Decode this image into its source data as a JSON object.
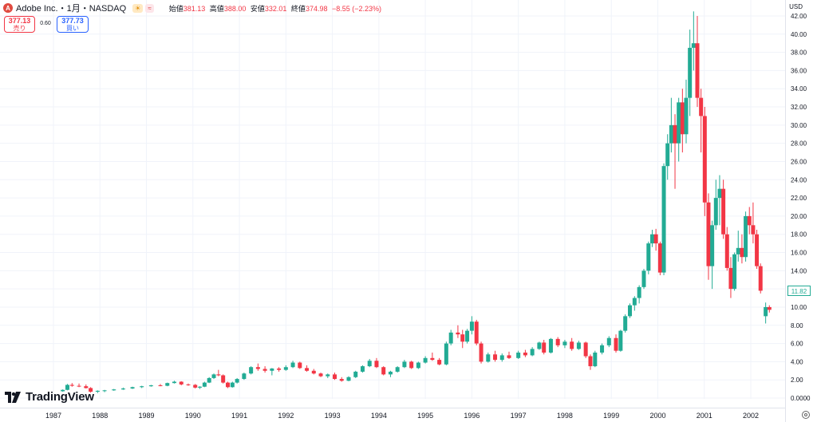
{
  "header": {
    "logo_letter": "A",
    "symbol": "Adobe Inc.・1月・NASDAQ",
    "badge1": "☀",
    "badge2": "≈",
    "open_label": "始値",
    "open": "381.13",
    "high_label": "高値",
    "high": "388.00",
    "low_label": "安値",
    "low": "332.01",
    "close_label": "終値",
    "close": "374.98",
    "change": "−8.55 (−2.23%)"
  },
  "trade": {
    "sell_price": "377.13",
    "sell_label": "売り",
    "spread": "0.60",
    "buy_price": "377.73",
    "buy_label": "買い"
  },
  "currency": "USD",
  "last_price": "11.82",
  "brand": "TradingView",
  "colors": {
    "up": "#22ab94",
    "down": "#f23645",
    "grid": "#f0f3fa",
    "axis_text": "#131722"
  },
  "chart_data": {
    "type": "candlestick",
    "interval": "1 month",
    "x_tick_labels": [
      "1987",
      "1988",
      "1989",
      "1990",
      "1991",
      "1992",
      "1993",
      "1994",
      "1995",
      "1996",
      "1997",
      "1998",
      "1999",
      "2000",
      "2001",
      "2002"
    ],
    "y_tick_labels": [
      "0.0000",
      "2.00",
      "4.00",
      "6.00",
      "8.00",
      "10.00",
      "12.00",
      "14.00",
      "16.00",
      "18.00",
      "20.00",
      "22.00",
      "24.00",
      "26.00",
      "28.00",
      "30.00",
      "32.00",
      "34.00",
      "36.00",
      "38.00",
      "40.00",
      "42.00"
    ],
    "ylim": [
      0,
      42.3
    ],
    "x_range": [
      1986.0,
      2003.0
    ],
    "series": [
      {
        "date": "1987.20",
        "o": 0.75,
        "h": 0.95,
        "l": 0.7,
        "c": 0.9
      },
      {
        "date": "1987.30",
        "o": 0.9,
        "h": 1.55,
        "l": 0.85,
        "c": 1.45
      },
      {
        "date": "1987.40",
        "o": 1.45,
        "h": 1.65,
        "l": 1.25,
        "c": 1.35
      },
      {
        "date": "1987.55",
        "o": 1.35,
        "h": 1.6,
        "l": 1.2,
        "c": 1.3
      },
      {
        "date": "1987.70",
        "o": 1.3,
        "h": 1.5,
        "l": 1.05,
        "c": 1.1
      },
      {
        "date": "1987.80",
        "o": 1.1,
        "h": 1.2,
        "l": 0.6,
        "c": 0.7
      },
      {
        "date": "1987.95",
        "o": 0.7,
        "h": 0.85,
        "l": 0.55,
        "c": 0.8
      },
      {
        "date": "1988.10",
        "o": 0.8,
        "h": 0.9,
        "l": 0.65,
        "c": 0.85
      },
      {
        "date": "1988.30",
        "o": 0.85,
        "h": 1.0,
        "l": 0.8,
        "c": 0.95
      },
      {
        "date": "1988.50",
        "o": 0.95,
        "h": 1.15,
        "l": 0.9,
        "c": 1.05
      },
      {
        "date": "1988.70",
        "o": 1.05,
        "h": 1.25,
        "l": 1.0,
        "c": 1.2
      },
      {
        "date": "1988.90",
        "o": 1.2,
        "h": 1.35,
        "l": 1.1,
        "c": 1.3
      },
      {
        "date": "1989.10",
        "o": 1.3,
        "h": 1.45,
        "l": 1.25,
        "c": 1.4
      },
      {
        "date": "1989.30",
        "o": 1.4,
        "h": 1.55,
        "l": 1.3,
        "c": 1.35
      },
      {
        "date": "1989.45",
        "o": 1.35,
        "h": 1.7,
        "l": 1.3,
        "c": 1.65
      },
      {
        "date": "1989.60",
        "o": 1.65,
        "h": 1.9,
        "l": 1.6,
        "c": 1.8
      },
      {
        "date": "1989.75",
        "o": 1.8,
        "h": 1.85,
        "l": 1.4,
        "c": 1.5
      },
      {
        "date": "1989.90",
        "o": 1.5,
        "h": 1.6,
        "l": 1.35,
        "c": 1.45
      },
      {
        "date": "1990.05",
        "o": 1.45,
        "h": 1.55,
        "l": 1.05,
        "c": 1.15
      },
      {
        "date": "1990.15",
        "o": 1.15,
        "h": 1.3,
        "l": 1.0,
        "c": 1.25
      },
      {
        "date": "1990.25",
        "o": 1.25,
        "h": 1.8,
        "l": 1.2,
        "c": 1.7
      },
      {
        "date": "1990.35",
        "o": 1.7,
        "h": 2.3,
        "l": 1.65,
        "c": 2.2
      },
      {
        "date": "1990.45",
        "o": 2.2,
        "h": 2.7,
        "l": 2.1,
        "c": 2.6
      },
      {
        "date": "1990.55",
        "o": 2.6,
        "h": 3.1,
        "l": 2.4,
        "c": 2.5
      },
      {
        "date": "1990.65",
        "o": 2.5,
        "h": 2.6,
        "l": 1.6,
        "c": 1.7
      },
      {
        "date": "1990.75",
        "o": 1.7,
        "h": 1.8,
        "l": 1.1,
        "c": 1.2
      },
      {
        "date": "1990.85",
        "o": 1.2,
        "h": 1.8,
        "l": 1.15,
        "c": 1.7
      },
      {
        "date": "1990.95",
        "o": 1.7,
        "h": 2.2,
        "l": 1.6,
        "c": 2.1
      },
      {
        "date": "1991.10",
        "o": 2.1,
        "h": 2.8,
        "l": 2.0,
        "c": 2.7
      },
      {
        "date": "1991.25",
        "o": 2.7,
        "h": 3.5,
        "l": 2.6,
        "c": 3.4
      },
      {
        "date": "1991.40",
        "o": 3.4,
        "h": 3.8,
        "l": 3.0,
        "c": 3.2
      },
      {
        "date": "1991.55",
        "o": 3.2,
        "h": 3.5,
        "l": 2.8,
        "c": 3.0
      },
      {
        "date": "1991.70",
        "o": 3.0,
        "h": 3.3,
        "l": 2.5,
        "c": 3.25
      },
      {
        "date": "1991.85",
        "o": 3.25,
        "h": 3.4,
        "l": 2.9,
        "c": 3.1
      },
      {
        "date": "1992.00",
        "o": 3.1,
        "h": 3.6,
        "l": 3.0,
        "c": 3.4
      },
      {
        "date": "1992.15",
        "o": 3.4,
        "h": 4.1,
        "l": 3.3,
        "c": 3.9
      },
      {
        "date": "1992.30",
        "o": 3.9,
        "h": 4.0,
        "l": 3.2,
        "c": 3.3
      },
      {
        "date": "1992.45",
        "o": 3.3,
        "h": 3.6,
        "l": 2.9,
        "c": 3.0
      },
      {
        "date": "1992.60",
        "o": 3.0,
        "h": 3.2,
        "l": 2.6,
        "c": 2.7
      },
      {
        "date": "1992.75",
        "o": 2.7,
        "h": 2.8,
        "l": 2.3,
        "c": 2.4
      },
      {
        "date": "1992.90",
        "o": 2.4,
        "h": 2.7,
        "l": 2.2,
        "c": 2.6
      },
      {
        "date": "1993.05",
        "o": 2.6,
        "h": 2.8,
        "l": 2.0,
        "c": 2.1
      },
      {
        "date": "1993.20",
        "o": 2.1,
        "h": 2.3,
        "l": 1.8,
        "c": 1.9
      },
      {
        "date": "1993.35",
        "o": 1.9,
        "h": 2.4,
        "l": 1.85,
        "c": 2.3
      },
      {
        "date": "1993.50",
        "o": 2.3,
        "h": 3.0,
        "l": 2.2,
        "c": 2.9
      },
      {
        "date": "1993.65",
        "o": 2.9,
        "h": 3.6,
        "l": 2.8,
        "c": 3.5
      },
      {
        "date": "1993.80",
        "o": 3.5,
        "h": 4.3,
        "l": 3.4,
        "c": 4.1
      },
      {
        "date": "1993.95",
        "o": 4.1,
        "h": 4.4,
        "l": 3.3,
        "c": 3.4
      },
      {
        "date": "1994.10",
        "o": 3.4,
        "h": 3.5,
        "l": 2.5,
        "c": 2.6
      },
      {
        "date": "1994.25",
        "o": 2.6,
        "h": 3.0,
        "l": 2.3,
        "c": 2.9
      },
      {
        "date": "1994.40",
        "o": 2.9,
        "h": 3.5,
        "l": 2.8,
        "c": 3.4
      },
      {
        "date": "1994.55",
        "o": 3.4,
        "h": 4.2,
        "l": 3.3,
        "c": 4.0
      },
      {
        "date": "1994.70",
        "o": 4.0,
        "h": 4.1,
        "l": 3.2,
        "c": 3.3
      },
      {
        "date": "1994.85",
        "o": 3.3,
        "h": 4.0,
        "l": 3.2,
        "c": 3.9
      },
      {
        "date": "1995.00",
        "o": 3.9,
        "h": 4.6,
        "l": 3.8,
        "c": 4.4
      },
      {
        "date": "1995.15",
        "o": 4.4,
        "h": 5.0,
        "l": 4.1,
        "c": 4.2
      },
      {
        "date": "1995.30",
        "o": 4.2,
        "h": 4.4,
        "l": 3.6,
        "c": 3.7
      },
      {
        "date": "1995.45",
        "o": 3.7,
        "h": 6.2,
        "l": 3.6,
        "c": 6.0
      },
      {
        "date": "1995.55",
        "o": 6.0,
        "h": 7.5,
        "l": 5.8,
        "c": 7.2
      },
      {
        "date": "1995.70",
        "o": 7.2,
        "h": 8.0,
        "l": 6.6,
        "c": 7.0
      },
      {
        "date": "1995.80",
        "o": 7.0,
        "h": 7.5,
        "l": 5.5,
        "c": 6.2
      },
      {
        "date": "1995.90",
        "o": 6.2,
        "h": 7.6,
        "l": 6.0,
        "c": 7.4
      },
      {
        "date": "1996.00",
        "o": 7.4,
        "h": 9.0,
        "l": 7.0,
        "c": 8.4
      },
      {
        "date": "1996.10",
        "o": 8.4,
        "h": 8.6,
        "l": 5.8,
        "c": 6.0
      },
      {
        "date": "1996.20",
        "o": 6.0,
        "h": 6.2,
        "l": 3.8,
        "c": 4.0
      },
      {
        "date": "1996.35",
        "o": 4.0,
        "h": 5.0,
        "l": 3.9,
        "c": 4.8
      },
      {
        "date": "1996.50",
        "o": 4.8,
        "h": 5.2,
        "l": 4.0,
        "c": 4.2
      },
      {
        "date": "1996.65",
        "o": 4.2,
        "h": 4.9,
        "l": 4.0,
        "c": 4.7
      },
      {
        "date": "1996.80",
        "o": 4.7,
        "h": 5.1,
        "l": 4.3,
        "c": 4.4
      },
      {
        "date": "1997.00",
        "o": 4.4,
        "h": 5.2,
        "l": 4.3,
        "c": 5.0
      },
      {
        "date": "1997.15",
        "o": 5.0,
        "h": 5.3,
        "l": 4.5,
        "c": 4.7
      },
      {
        "date": "1997.30",
        "o": 4.7,
        "h": 5.6,
        "l": 4.6,
        "c": 5.4
      },
      {
        "date": "1997.45",
        "o": 5.4,
        "h": 6.2,
        "l": 5.3,
        "c": 6.1
      },
      {
        "date": "1997.55",
        "o": 6.1,
        "h": 6.4,
        "l": 4.8,
        "c": 5.0
      },
      {
        "date": "1997.70",
        "o": 5.0,
        "h": 6.6,
        "l": 4.9,
        "c": 6.5
      },
      {
        "date": "1997.85",
        "o": 6.5,
        "h": 6.7,
        "l": 5.6,
        "c": 5.8
      },
      {
        "date": "1998.00",
        "o": 5.8,
        "h": 6.4,
        "l": 5.5,
        "c": 6.2
      },
      {
        "date": "1998.15",
        "o": 6.2,
        "h": 6.6,
        "l": 5.2,
        "c": 5.4
      },
      {
        "date": "1998.30",
        "o": 5.4,
        "h": 6.3,
        "l": 5.3,
        "c": 6.1
      },
      {
        "date": "1998.45",
        "o": 6.1,
        "h": 6.2,
        "l": 4.4,
        "c": 4.6
      },
      {
        "date": "1998.55",
        "o": 4.6,
        "h": 4.8,
        "l": 3.1,
        "c": 3.5
      },
      {
        "date": "1998.65",
        "o": 3.5,
        "h": 5.2,
        "l": 3.4,
        "c": 5.0
      },
      {
        "date": "1998.80",
        "o": 5.0,
        "h": 6.0,
        "l": 4.8,
        "c": 5.8
      },
      {
        "date": "1998.95",
        "o": 5.8,
        "h": 6.8,
        "l": 5.6,
        "c": 6.6
      },
      {
        "date": "1999.10",
        "o": 6.6,
        "h": 7.0,
        "l": 5.0,
        "c": 5.2
      },
      {
        "date": "1999.20",
        "o": 5.2,
        "h": 7.5,
        "l": 5.1,
        "c": 7.4
      },
      {
        "date": "1999.30",
        "o": 7.4,
        "h": 9.2,
        "l": 7.2,
        "c": 9.0
      },
      {
        "date": "1999.40",
        "o": 9.0,
        "h": 10.4,
        "l": 8.8,
        "c": 10.2
      },
      {
        "date": "1999.50",
        "o": 10.2,
        "h": 11.2,
        "l": 9.6,
        "c": 11.0
      },
      {
        "date": "1999.60",
        "o": 11.0,
        "h": 12.4,
        "l": 10.4,
        "c": 12.2
      },
      {
        "date": "1999.70",
        "o": 12.2,
        "h": 14.2,
        "l": 12.0,
        "c": 14.0
      },
      {
        "date": "1999.80",
        "o": 14.0,
        "h": 17.2,
        "l": 13.6,
        "c": 17.0
      },
      {
        "date": "1999.88",
        "o": 17.0,
        "h": 18.5,
        "l": 16.6,
        "c": 18.0
      },
      {
        "date": "1999.96",
        "o": 18.0,
        "h": 18.6,
        "l": 16.2,
        "c": 17.0
      },
      {
        "date": "2000.05",
        "o": 17.0,
        "h": 17.2,
        "l": 13.5,
        "c": 13.8
      },
      {
        "date": "2000.13",
        "o": 13.8,
        "h": 25.8,
        "l": 13.5,
        "c": 25.5
      },
      {
        "date": "2000.21",
        "o": 25.5,
        "h": 29.0,
        "l": 24.0,
        "c": 28.0
      },
      {
        "date": "2000.29",
        "o": 28.0,
        "h": 33.0,
        "l": 27.0,
        "c": 30.0
      },
      {
        "date": "2000.37",
        "o": 30.0,
        "h": 31.2,
        "l": 23.0,
        "c": 28.0
      },
      {
        "date": "2000.45",
        "o": 28.0,
        "h": 33.0,
        "l": 26.0,
        "c": 32.5
      },
      {
        "date": "2000.53",
        "o": 32.5,
        "h": 34.0,
        "l": 27.0,
        "c": 29.0
      },
      {
        "date": "2000.61",
        "o": 29.0,
        "h": 35.0,
        "l": 28.0,
        "c": 33.0
      },
      {
        "date": "2000.69",
        "o": 33.0,
        "h": 40.5,
        "l": 31.0,
        "c": 38.5
      },
      {
        "date": "2000.77",
        "o": 38.5,
        "h": 42.5,
        "l": 36.0,
        "c": 39.0
      },
      {
        "date": "2000.85",
        "o": 39.0,
        "h": 42.0,
        "l": 32.0,
        "c": 33.0
      },
      {
        "date": "2000.93",
        "o": 33.0,
        "h": 34.0,
        "l": 27.0,
        "c": 31.0
      },
      {
        "date": "2001.01",
        "o": 31.0,
        "h": 32.0,
        "l": 20.0,
        "c": 21.5
      },
      {
        "date": "2001.09",
        "o": 21.5,
        "h": 22.5,
        "l": 13.0,
        "c": 14.5
      },
      {
        "date": "2001.17",
        "o": 14.5,
        "h": 19.5,
        "l": 12.0,
        "c": 19.0
      },
      {
        "date": "2001.25",
        "o": 19.0,
        "h": 24.0,
        "l": 18.5,
        "c": 22.0
      },
      {
        "date": "2001.33",
        "o": 22.0,
        "h": 24.5,
        "l": 19.0,
        "c": 23.0
      },
      {
        "date": "2001.41",
        "o": 23.0,
        "h": 24.0,
        "l": 17.5,
        "c": 18.0
      },
      {
        "date": "2001.49",
        "o": 18.0,
        "h": 18.8,
        "l": 14.0,
        "c": 14.3
      },
      {
        "date": "2001.57",
        "o": 14.3,
        "h": 15.5,
        "l": 11.0,
        "c": 12.0
      },
      {
        "date": "2001.65",
        "o": 12.0,
        "h": 16.0,
        "l": 11.8,
        "c": 15.8
      },
      {
        "date": "2001.73",
        "o": 15.8,
        "h": 18.4,
        "l": 15.0,
        "c": 16.5
      },
      {
        "date": "2001.81",
        "o": 16.5,
        "h": 18.0,
        "l": 14.8,
        "c": 15.5
      },
      {
        "date": "2001.89",
        "o": 15.5,
        "h": 20.5,
        "l": 15.0,
        "c": 20.0
      },
      {
        "date": "2001.97",
        "o": 20.0,
        "h": 21.0,
        "l": 18.0,
        "c": 19.0
      },
      {
        "date": "2002.05",
        "o": 19.0,
        "h": 21.5,
        "l": 17.0,
        "c": 18.0
      },
      {
        "date": "2002.13",
        "o": 18.0,
        "h": 18.5,
        "l": 14.2,
        "c": 14.5
      },
      {
        "date": "2002.21",
        "o": 14.5,
        "h": 14.8,
        "l": 11.5,
        "c": 11.8
      },
      {
        "date": "2002.32",
        "o": 9.0,
        "h": 10.5,
        "l": 8.2,
        "c": 10.0
      },
      {
        "date": "2002.40",
        "o": 10.0,
        "h": 10.2,
        "l": 9.4,
        "c": 9.7
      }
    ]
  }
}
